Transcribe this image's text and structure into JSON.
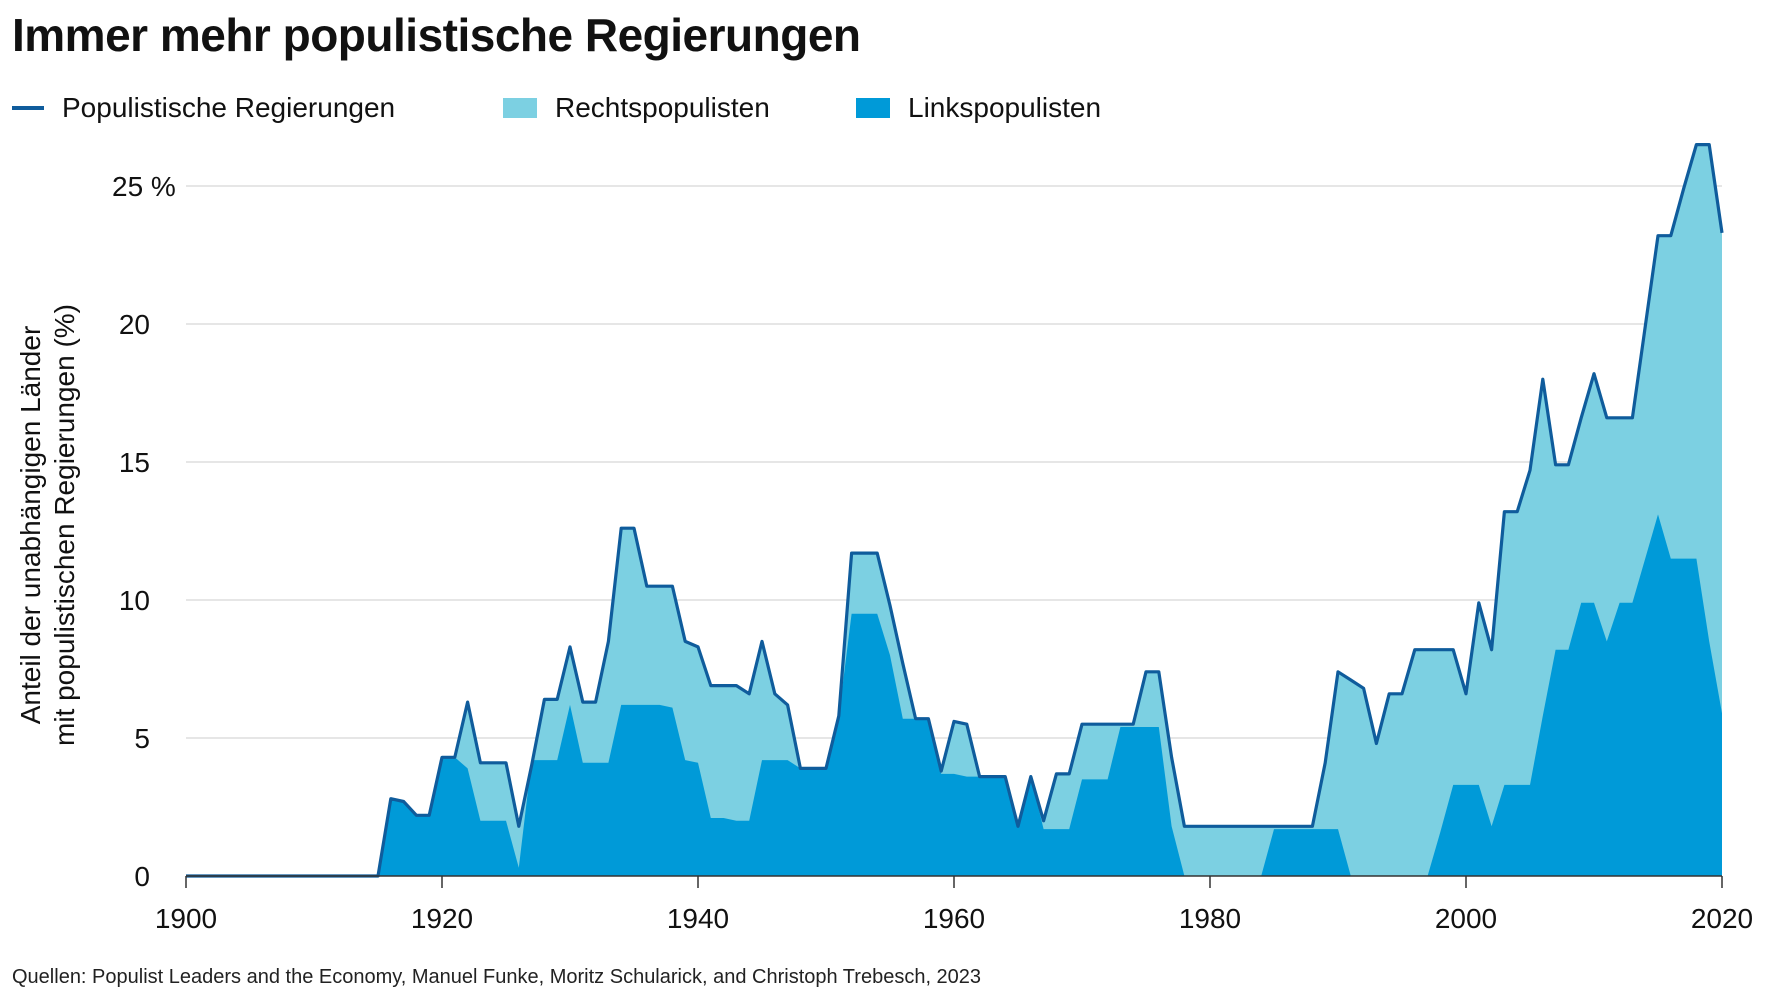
{
  "chart_data": {
    "type": "area",
    "title": "Immer mehr populistische Regierungen",
    "ylabel": [
      "Anteil der unabhängigen Länder",
      "mit populistischen Regierungen (%)"
    ],
    "xlabel": "",
    "xlim": [
      1900,
      2020
    ],
    "ylim": [
      0,
      26.5
    ],
    "x_ticks": [
      "1900",
      "1920",
      "1940",
      "1960",
      "1980",
      "2000",
      "2020"
    ],
    "y_ticks": [
      "0",
      "5",
      "10",
      "15",
      "20",
      "25 %"
    ],
    "grid": "horizontal",
    "legend_position": "top-left",
    "legend": [
      {
        "name": "Populistische Regierungen",
        "kind": "line",
        "color": "#0f5c9c"
      },
      {
        "name": "Rechtspopulisten",
        "kind": "area",
        "color": "#7cd0e2"
      },
      {
        "name": "Linkspopulisten",
        "kind": "area",
        "color": "#009ad8"
      }
    ],
    "x_start": 1900,
    "series": [
      {
        "name": "Populistische Regierungen",
        "stack": "total",
        "values": [
          0,
          0,
          0,
          0,
          0,
          0,
          0,
          0,
          0,
          0,
          0,
          0,
          0,
          0,
          0,
          0,
          2.8,
          2.7,
          2.2,
          2.2,
          4.3,
          4.3,
          6.3,
          4.1,
          4.1,
          4.1,
          1.8,
          4.0,
          6.4,
          6.4,
          8.3,
          6.3,
          6.3,
          8.5,
          12.6,
          12.6,
          10.5,
          10.5,
          10.5,
          8.5,
          8.3,
          6.9,
          6.9,
          6.9,
          6.6,
          8.5,
          6.6,
          6.2,
          3.9,
          3.9,
          3.9,
          5.8,
          11.7,
          11.7,
          11.7,
          9.8,
          7.7,
          5.7,
          5.7,
          3.8,
          5.6,
          5.5,
          3.6,
          3.6,
          3.6,
          1.8,
          3.6,
          2.0,
          3.7,
          3.7,
          5.5,
          5.5,
          5.5,
          5.5,
          5.5,
          7.4,
          7.4,
          4.3,
          1.8,
          1.8,
          1.8,
          1.8,
          1.8,
          1.8,
          1.8,
          1.8,
          1.8,
          1.8,
          1.8,
          4.1,
          7.4,
          7.1,
          6.8,
          4.8,
          6.6,
          6.6,
          8.2,
          8.2,
          8.2,
          8.2,
          6.6,
          9.9,
          8.2,
          13.2,
          13.2,
          14.7,
          18.0,
          14.9,
          14.9,
          16.6,
          18.2,
          16.6,
          16.6,
          16.6,
          19.9,
          23.2,
          23.2,
          24.9,
          26.5,
          26.5,
          23.3
        ]
      },
      {
        "name": "Linkspopulisten",
        "values": [
          0,
          0,
          0,
          0,
          0,
          0,
          0,
          0,
          0,
          0,
          0,
          0,
          0,
          0,
          0,
          0,
          2.8,
          2.7,
          2.2,
          2.2,
          4.3,
          4.3,
          3.9,
          2.0,
          2.0,
          2.0,
          0.3,
          4.2,
          4.2,
          4.2,
          6.2,
          4.1,
          4.1,
          4.1,
          6.2,
          6.2,
          6.2,
          6.2,
          6.1,
          4.2,
          4.1,
          2.1,
          2.1,
          2.0,
          2.0,
          4.2,
          4.2,
          4.2,
          3.9,
          3.9,
          3.9,
          5.8,
          9.5,
          9.5,
          9.5,
          8.0,
          5.7,
          5.7,
          5.7,
          3.7,
          3.7,
          3.6,
          3.6,
          3.6,
          3.6,
          1.8,
          3.6,
          1.7,
          1.7,
          1.7,
          3.5,
          3.5,
          3.5,
          5.4,
          5.4,
          5.4,
          5.4,
          1.8,
          0,
          0,
          0,
          0,
          0,
          0,
          0,
          1.7,
          1.7,
          1.7,
          1.7,
          1.7,
          1.7,
          0,
          0,
          0,
          0,
          0,
          0,
          0,
          1.6,
          3.3,
          3.3,
          3.3,
          1.8,
          3.3,
          3.3,
          3.3,
          5.8,
          8.2,
          8.2,
          9.9,
          9.9,
          8.5,
          9.9,
          9.9,
          11.5,
          13.1,
          11.5,
          11.5,
          11.5,
          8.5,
          5.9
        ]
      },
      {
        "name": "Rechtspopulisten",
        "derived": "total minus Linkspopulisten"
      }
    ],
    "source": "Quellen: Populist Leaders and the Economy, Manuel Funke, Moritz Schularick, and Christoph Trebesch, 2023"
  }
}
